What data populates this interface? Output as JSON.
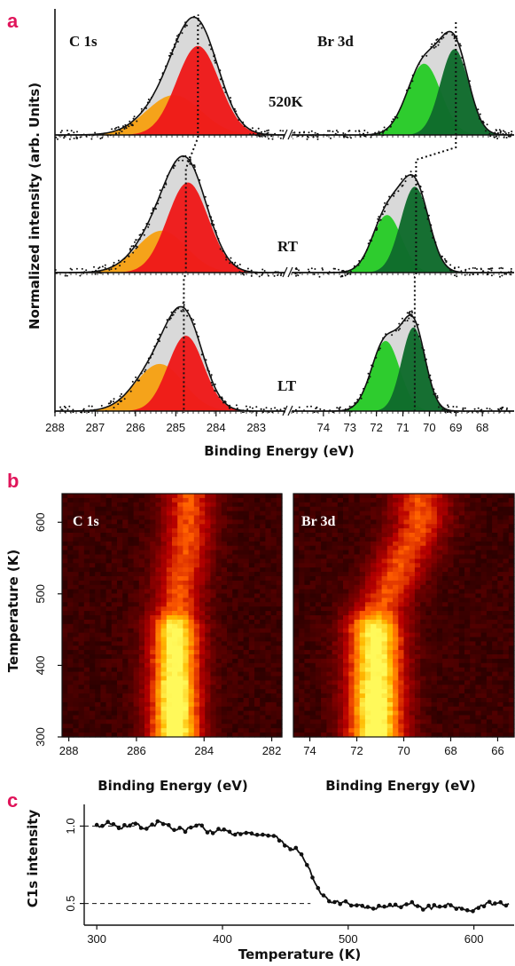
{
  "panel_labels": [
    "a",
    "b",
    "c"
  ],
  "colors": {
    "panel_label": "#e0145a",
    "c1s_high_be": "#f5a31a",
    "c1s_low_be": "#ee1a1a",
    "br_high_be": "#2ecc2e",
    "br_low_be": "#0f6b2c",
    "envelope_fill": "#d9d9d9"
  },
  "chart_data": [
    {
      "panel": "a",
      "type": "line",
      "subtype": "XPS peak-fit spectra (stacked)",
      "xlabel": "Binding Energy (eV)",
      "ylabel": "Normalized intensity (arb. Units)",
      "spectra_labels": [
        "C 1s",
        "Br 3d"
      ],
      "c1s_x_ticks": [
        "288",
        "287",
        "286",
        "285",
        "284",
        "283"
      ],
      "br_x_ticks": [
        "74",
        "73",
        "72",
        "71",
        "70",
        "69",
        "68"
      ],
      "xlim_c1s": [
        288,
        282.3
      ],
      "xlim_br": [
        75.2,
        66.8
      ],
      "axis_break": true,
      "rows": [
        {
          "label": "520K",
          "c1s_components": [
            {
              "center": 285.05,
              "amplitude": 0.38,
              "fwhm": 1.6
            },
            {
              "center": 284.45,
              "amplitude": 0.85,
              "fwhm": 1.25
            }
          ],
          "br_components": [
            {
              "center": 70.2,
              "amplitude": 0.68,
              "fwhm": 1.5
            },
            {
              "center": 69.05,
              "amplitude": 0.82,
              "fwhm": 1.25
            }
          ],
          "c1s_marker": 284.45,
          "br_marker": 69.0
        },
        {
          "label": "RT",
          "c1s_components": [
            {
              "center": 285.35,
              "amplitude": 0.4,
              "fwhm": 1.45
            },
            {
              "center": 284.7,
              "amplitude": 0.86,
              "fwhm": 1.2
            }
          ],
          "br_components": [
            {
              "center": 71.6,
              "amplitude": 0.55,
              "fwhm": 1.3
            },
            {
              "center": 70.55,
              "amplitude": 0.82,
              "fwhm": 1.25
            }
          ],
          "c1s_marker": 284.75,
          "br_marker": 70.5
        },
        {
          "label": "LT",
          "c1s_components": [
            {
              "center": 285.4,
              "amplitude": 0.45,
              "fwhm": 1.4
            },
            {
              "center": 284.75,
              "amplitude": 0.72,
              "fwhm": 1.05
            }
          ],
          "br_components": [
            {
              "center": 71.65,
              "amplitude": 0.67,
              "fwhm": 1.25
            },
            {
              "center": 70.6,
              "amplitude": 0.8,
              "fwhm": 1.05
            }
          ],
          "c1s_marker": 284.8,
          "br_marker": 70.55
        }
      ]
    },
    {
      "panel": "b",
      "type": "heatmap",
      "ylabel": "Temperature (K)",
      "y_ticks": [
        "600",
        "500",
        "400",
        "300"
      ],
      "ylim": [
        300,
        640
      ],
      "maps": [
        {
          "label": "C 1s",
          "xlabel": "Binding Energy (eV)",
          "x_ticks": [
            "288",
            "286",
            "284",
            "282"
          ],
          "xlim": [
            288.2,
            281.7
          ],
          "peak_low_T": 284.85,
          "peak_high_T": 284.45,
          "transition_T": 468
        },
        {
          "label": "Br 3d",
          "xlabel": "Binding Energy (eV)",
          "x_ticks": [
            "74",
            "72",
            "70",
            "68",
            "66"
          ],
          "xlim": [
            74.7,
            65.3
          ],
          "peak_low_T": 71.2,
          "peak_high_T": 69.3,
          "transition_T": 468
        }
      ]
    },
    {
      "panel": "c",
      "type": "line",
      "xlabel": "Temperature (K)",
      "ylabel": "C1s intensity",
      "x_ticks": [
        "300",
        "400",
        "500",
        "600"
      ],
      "y_ticks": [
        "0.5",
        "1.0"
      ],
      "xlim": [
        290,
        632
      ],
      "ylim": [
        0.36,
        1.14
      ],
      "reference_lines": [
        1.0,
        0.5
      ],
      "x": [
        300,
        310,
        320,
        330,
        340,
        350,
        360,
        370,
        380,
        390,
        400,
        410,
        420,
        430,
        440,
        450,
        460,
        465,
        470,
        475,
        480,
        485,
        490,
        500,
        510,
        520,
        530,
        540,
        550,
        560,
        570,
        580,
        590,
        600,
        610,
        620,
        630
      ],
      "values": [
        1.0,
        1.02,
        0.99,
        1.02,
        0.98,
        1.03,
        0.99,
        0.97,
        1.01,
        0.96,
        0.98,
        0.95,
        0.97,
        0.93,
        0.95,
        0.87,
        0.85,
        0.78,
        0.7,
        0.6,
        0.55,
        0.52,
        0.51,
        0.5,
        0.48,
        0.47,
        0.49,
        0.48,
        0.5,
        0.47,
        0.48,
        0.49,
        0.47,
        0.46,
        0.5,
        0.5,
        0.49
      ]
    }
  ]
}
